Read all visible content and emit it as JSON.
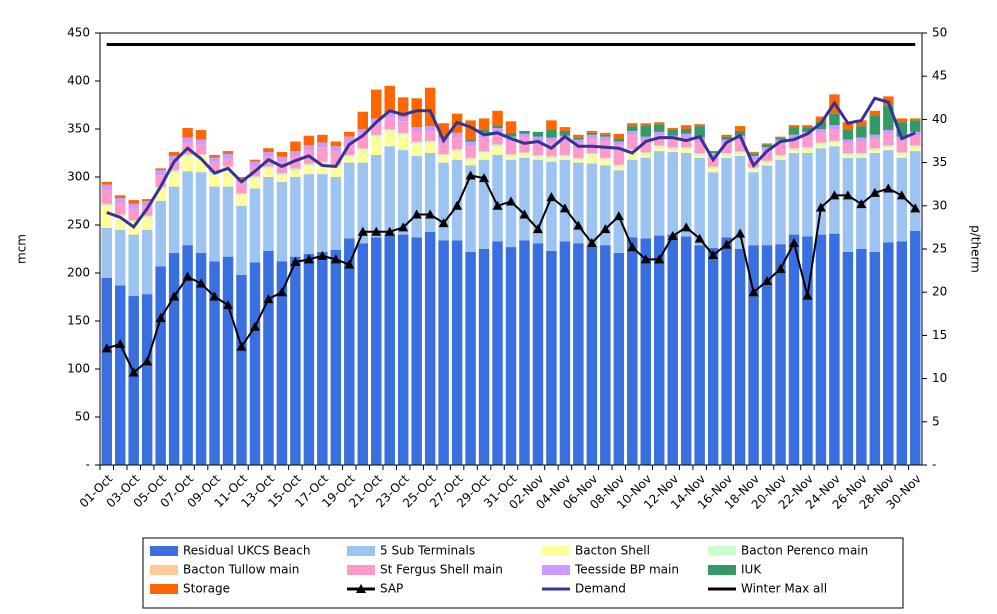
{
  "chart_data": {
    "type": "bar",
    "y_label": "mcm",
    "y2_label": "p/therm",
    "categories": [
      "01-Oct",
      null,
      "03-Oct",
      null,
      "05-Oct",
      null,
      "07-Oct",
      null,
      "09-Oct",
      null,
      "11-Oct",
      null,
      "13-Oct",
      null,
      "15-Oct",
      null,
      "17-Oct",
      null,
      "19-Oct",
      null,
      "21-Oct",
      null,
      "23-Oct",
      null,
      "25-Oct",
      null,
      "27-Oct",
      null,
      "29-Oct",
      null,
      "31-Oct",
      null,
      "02-Nov",
      null,
      "04-Nov",
      null,
      "06-Nov",
      null,
      "08-Nov",
      null,
      "10-Nov",
      null,
      "12-Nov",
      null,
      "14-Nov",
      null,
      "16-Nov",
      null,
      "18-Nov",
      null,
      "20-Nov",
      null,
      "22-Nov",
      null,
      "24-Nov",
      null,
      "26-Nov",
      null,
      "28-Nov",
      null,
      "30-Nov"
    ],
    "ylim": [
      0,
      450
    ],
    "yticks": [
      {
        "value": 0,
        "label": "-"
      },
      50,
      100,
      150,
      200,
      250,
      300,
      350,
      400,
      450
    ],
    "y2lim": [
      0,
      50
    ],
    "y2ticks": [
      {
        "value": 0,
        "label": "-"
      },
      5,
      10,
      15,
      20,
      25,
      30,
      35,
      40,
      45,
      50
    ],
    "series": [
      {
        "name": "Residual UKCS Beach",
        "color": "#3a6fe0",
        "values": [
          195,
          187,
          176,
          178,
          207,
          221,
          229,
          221,
          212,
          217,
          198,
          211,
          223,
          212,
          217,
          220,
          222,
          224,
          236,
          231,
          237,
          240,
          240,
          237,
          243,
          234,
          234,
          222,
          225,
          233,
          227,
          234,
          231,
          223,
          233,
          231,
          228,
          229,
          221,
          237,
          236,
          239,
          240,
          238,
          229,
          226,
          237,
          225,
          229,
          229,
          230,
          240,
          238,
          240,
          241,
          222,
          225,
          222,
          232,
          233,
          244
        ]
      },
      {
        "name": "5 Sub Terminals",
        "color": "#9dc3f0",
        "values": [
          52,
          58,
          64,
          67,
          68,
          69,
          77,
          84,
          78,
          73,
          72,
          77,
          77,
          83,
          83,
          83,
          81,
          76,
          79,
          84,
          86,
          92,
          88,
          85,
          82,
          81,
          84,
          90,
          93,
          90,
          91,
          86,
          87,
          93,
          85,
          84,
          86,
          83,
          86,
          81,
          84,
          88,
          86,
          87,
          91,
          79,
          83,
          97,
          76,
          83,
          88,
          85,
          87,
          90,
          91,
          98,
          95,
          103,
          96,
          87,
          83
        ]
      },
      {
        "name": "Bacton Shell",
        "color": "#ffff99",
        "values": [
          22,
          13,
          12,
          12,
          12,
          14,
          15,
          16,
          12,
          18,
          10,
          10,
          8,
          6,
          6,
          8,
          10,
          10,
          5,
          12,
          18,
          15,
          15,
          12,
          10,
          6,
          8,
          5,
          6,
          8,
          3,
          3,
          2,
          3,
          2,
          2,
          8,
          5,
          3,
          8,
          3,
          3,
          2,
          3,
          2,
          3,
          2,
          2,
          2,
          2,
          2,
          2,
          3,
          3,
          3,
          2,
          2,
          2,
          2,
          3,
          3
        ]
      },
      {
        "name": "Bacton Perenco main",
        "color": "#ccffcc",
        "values": [
          2,
          2,
          2,
          2,
          2,
          2,
          2,
          2,
          2,
          2,
          2,
          2,
          2,
          2,
          2,
          2,
          2,
          2,
          2,
          2,
          2,
          2,
          2,
          2,
          2,
          2,
          2,
          2,
          2,
          2,
          2,
          2,
          2,
          2,
          2,
          2,
          2,
          2,
          2,
          2,
          2,
          2,
          2,
          2,
          2,
          2,
          2,
          2,
          2,
          2,
          2,
          2,
          2,
          2,
          2,
          2,
          2,
          2,
          2,
          2,
          2
        ]
      },
      {
        "name": "Bacton Tullow main",
        "color": "#ffcc99",
        "values": [
          1,
          1,
          1,
          1,
          1,
          1,
          1,
          1,
          1,
          1,
          1,
          1,
          1,
          1,
          1,
          1,
          1,
          1,
          1,
          1,
          1,
          1,
          1,
          1,
          1,
          1,
          1,
          1,
          1,
          1,
          1,
          1,
          1,
          1,
          1,
          1,
          1,
          1,
          1,
          1,
          1,
          1,
          1,
          1,
          1,
          1,
          1,
          1,
          1,
          1,
          1,
          1,
          1,
          1,
          1,
          1,
          1,
          1,
          1,
          1,
          1
        ]
      },
      {
        "name": "St Fergus Shell main",
        "color": "#ff99cc",
        "values": [
          15,
          12,
          12,
          10,
          12,
          10,
          12,
          10,
          10,
          8,
          10,
          10,
          10,
          12,
          13,
          14,
          15,
          14,
          14,
          15,
          12,
          12,
          12,
          10,
          10,
          12,
          12,
          12,
          14,
          12,
          13,
          15,
          15,
          15,
          16,
          15,
          15,
          18,
          20,
          15,
          12,
          10,
          8,
          10,
          12,
          10,
          10,
          12,
          8,
          10,
          12,
          10,
          12,
          10,
          12,
          10,
          12,
          10,
          12,
          12,
          10
        ]
      },
      {
        "name": "Teesside BP main",
        "color": "#cc99ff",
        "values": [
          5,
          5,
          5,
          5,
          5,
          5,
          5,
          5,
          5,
          5,
          5,
          5,
          5,
          5,
          5,
          5,
          5,
          5,
          5,
          5,
          5,
          5,
          5,
          5,
          5,
          5,
          5,
          5,
          5,
          5,
          5,
          4,
          4,
          4,
          4,
          4,
          4,
          4,
          4,
          4,
          4,
          4,
          4,
          4,
          4,
          4,
          4,
          4,
          4,
          4,
          4,
          4,
          4,
          4,
          4,
          4,
          4,
          4,
          4,
          4,
          4
        ]
      },
      {
        "name": "IUK",
        "color": "#339966",
        "values": [
          0,
          0,
          0,
          0,
          0,
          0,
          0,
          0,
          0,
          0,
          0,
          0,
          0,
          0,
          0,
          0,
          0,
          0,
          0,
          0,
          0,
          0,
          0,
          0,
          0,
          0,
          0,
          2,
          3,
          3,
          4,
          3,
          5,
          8,
          5,
          2,
          2,
          2,
          3,
          5,
          12,
          8,
          6,
          5,
          12,
          2,
          3,
          5,
          2,
          3,
          2,
          8,
          5,
          8,
          12,
          10,
          12,
          20,
          25,
          15,
          12
        ]
      },
      {
        "name": "Storage",
        "color": "#ff6600",
        "values": [
          3,
          3,
          4,
          2,
          2,
          4,
          10,
          10,
          3,
          3,
          2,
          2,
          4,
          5,
          10,
          10,
          8,
          5,
          5,
          18,
          30,
          28,
          20,
          30,
          40,
          15,
          20,
          20,
          12,
          15,
          12,
          0,
          0,
          10,
          4,
          3,
          2,
          2,
          5,
          3,
          2,
          2,
          2,
          4,
          2,
          0,
          2,
          5,
          2,
          1,
          1,
          2,
          2,
          5,
          20,
          8,
          6,
          5,
          10,
          4,
          2
        ]
      },
      {
        "name": "SAP",
        "color": "#000000",
        "style": "line",
        "marker": "triangle",
        "axis": "y2",
        "values": [
          13.5,
          14,
          10.7,
          12,
          17,
          19.5,
          21.8,
          21,
          19.5,
          18.5,
          13.7,
          16,
          19.2,
          20,
          23.5,
          23.8,
          24.2,
          23.8,
          23.2,
          27,
          27,
          27,
          27.5,
          29,
          29,
          28,
          30,
          33.5,
          33.2,
          30,
          30.5,
          29,
          27.3,
          31,
          29.7,
          27.7,
          25.7,
          27.3,
          28.8,
          25.2,
          23.8,
          23.8,
          26.5,
          27.5,
          26.2,
          24.3,
          25.5,
          26.8,
          20,
          21.3,
          22.7,
          25.7,
          19.6,
          29.8,
          31.2,
          31.2,
          30.2,
          31.5,
          32,
          31.2,
          29.7
        ]
      },
      {
        "name": "Demand",
        "color": "#333399",
        "style": "line",
        "values": [
          263,
          258,
          248,
          267,
          290,
          316,
          330,
          319,
          304,
          309,
          295,
          306,
          318,
          311,
          317,
          322,
          312,
          311,
          334,
          343,
          357,
          369,
          365,
          369,
          369,
          338,
          357,
          352,
          344,
          346,
          340,
          335,
          337,
          330,
          342,
          332,
          332,
          331,
          330,
          325,
          337,
          341,
          341,
          338,
          342,
          318,
          336,
          343,
          312,
          327,
          337,
          339,
          345,
          356,
          377,
          356,
          359,
          382,
          378,
          340,
          346
        ]
      },
      {
        "name": "Winter Max all",
        "color": "#000000",
        "style": "line",
        "values": [
          438,
          438,
          438,
          438,
          438,
          438,
          438,
          438,
          438,
          438,
          438,
          438,
          438,
          438,
          438,
          438,
          438,
          438,
          438,
          438,
          438,
          438,
          438,
          438,
          438,
          438,
          438,
          438,
          438,
          438,
          438,
          438,
          438,
          438,
          438,
          438,
          438,
          438,
          438,
          438,
          438,
          438,
          438,
          438,
          438,
          438,
          438,
          438,
          438,
          438,
          438,
          438,
          438,
          438,
          438,
          438,
          438,
          438,
          438,
          438,
          438
        ]
      }
    ]
  }
}
